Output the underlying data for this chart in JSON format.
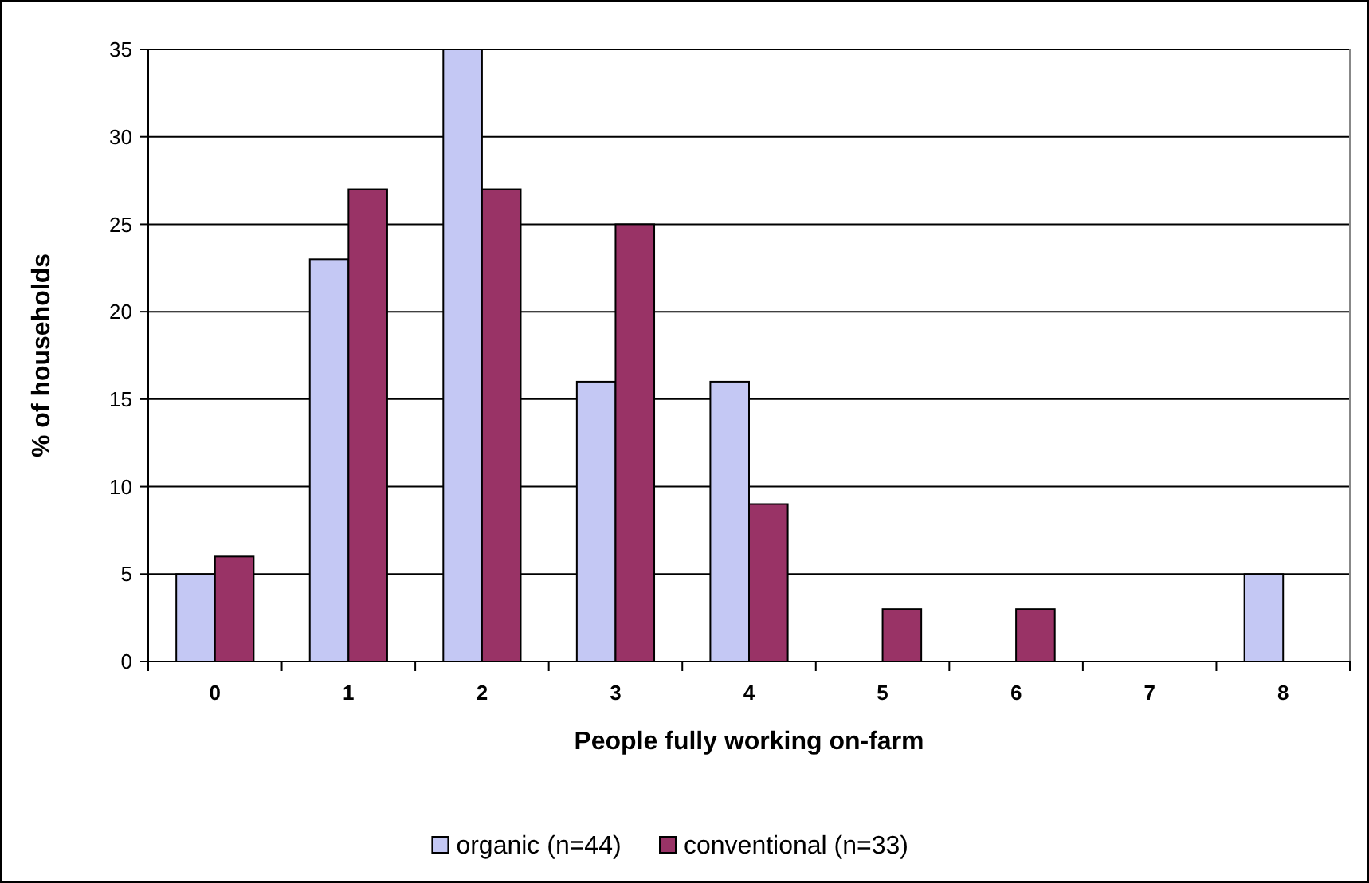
{
  "chart_data": {
    "type": "bar",
    "xlabel": "People fully working on-farm",
    "ylabel": "% of households",
    "categories": [
      "0",
      "1",
      "2",
      "3",
      "4",
      "5",
      "6",
      "7",
      "8"
    ],
    "series": [
      {
        "name": "organic (n=44)",
        "color": "#c4c8f4",
        "values": [
          5,
          23,
          35,
          16,
          16,
          0,
          0,
          0,
          5
        ]
      },
      {
        "name": "conventional (n=33)",
        "color": "#993366",
        "values": [
          6,
          27,
          27,
          25,
          9,
          3,
          3,
          0,
          0
        ]
      }
    ],
    "ylim": [
      0,
      35
    ],
    "yticks": [
      0,
      5,
      10,
      15,
      20,
      25,
      30,
      35
    ],
    "grid": "y",
    "legend": "bottom"
  }
}
